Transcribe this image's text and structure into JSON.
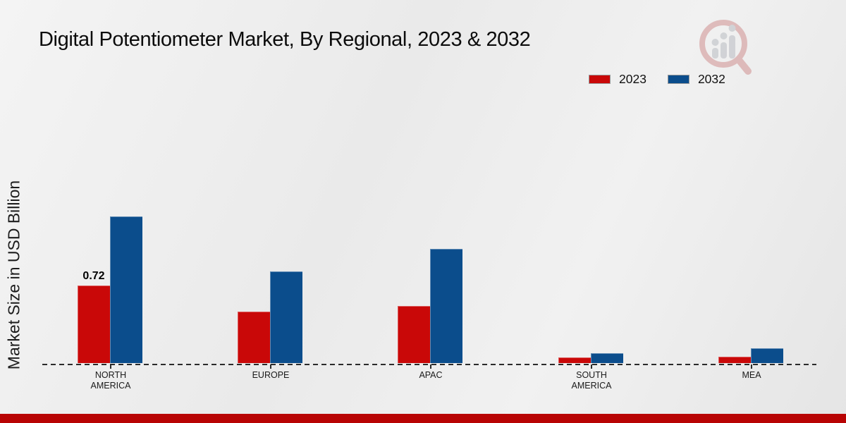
{
  "title": "Digital Potentiometer Market, By Regional, 2023 & 2032",
  "y_axis_label": "Market Size in USD Billion",
  "legend": {
    "items": [
      {
        "label": "2023",
        "color": "#c90808"
      },
      {
        "label": "2032",
        "color": "#0b4d8c"
      }
    ]
  },
  "chart_data": {
    "type": "bar",
    "title": "Digital Potentiometer Market, By Regional, 2023 & 2032",
    "categories": [
      "NORTH AMERICA",
      "EUROPE",
      "APAC",
      "SOUTH AMERICA",
      "MEA"
    ],
    "series": [
      {
        "name": "2023",
        "color": "#c90808",
        "values": [
          0.72,
          0.48,
          0.53,
          0.05,
          0.06
        ]
      },
      {
        "name": "2032",
        "color": "#0b4d8c",
        "values": [
          1.36,
          0.85,
          1.06,
          0.09,
          0.14
        ]
      }
    ],
    "data_labels": [
      {
        "series": "2023",
        "category": "NORTH AMERICA",
        "text": "0.72"
      }
    ],
    "xlabel": "",
    "ylabel": "Market Size in USD Billion",
    "ylim": [
      0,
      1.5
    ],
    "grid": false,
    "legend_position": "top-right",
    "x_axis_style": "dashed-baseline"
  },
  "branding": {
    "logo_icon": "magnifier-bar-chart-icon",
    "footer_bar_color": "#b80404"
  }
}
